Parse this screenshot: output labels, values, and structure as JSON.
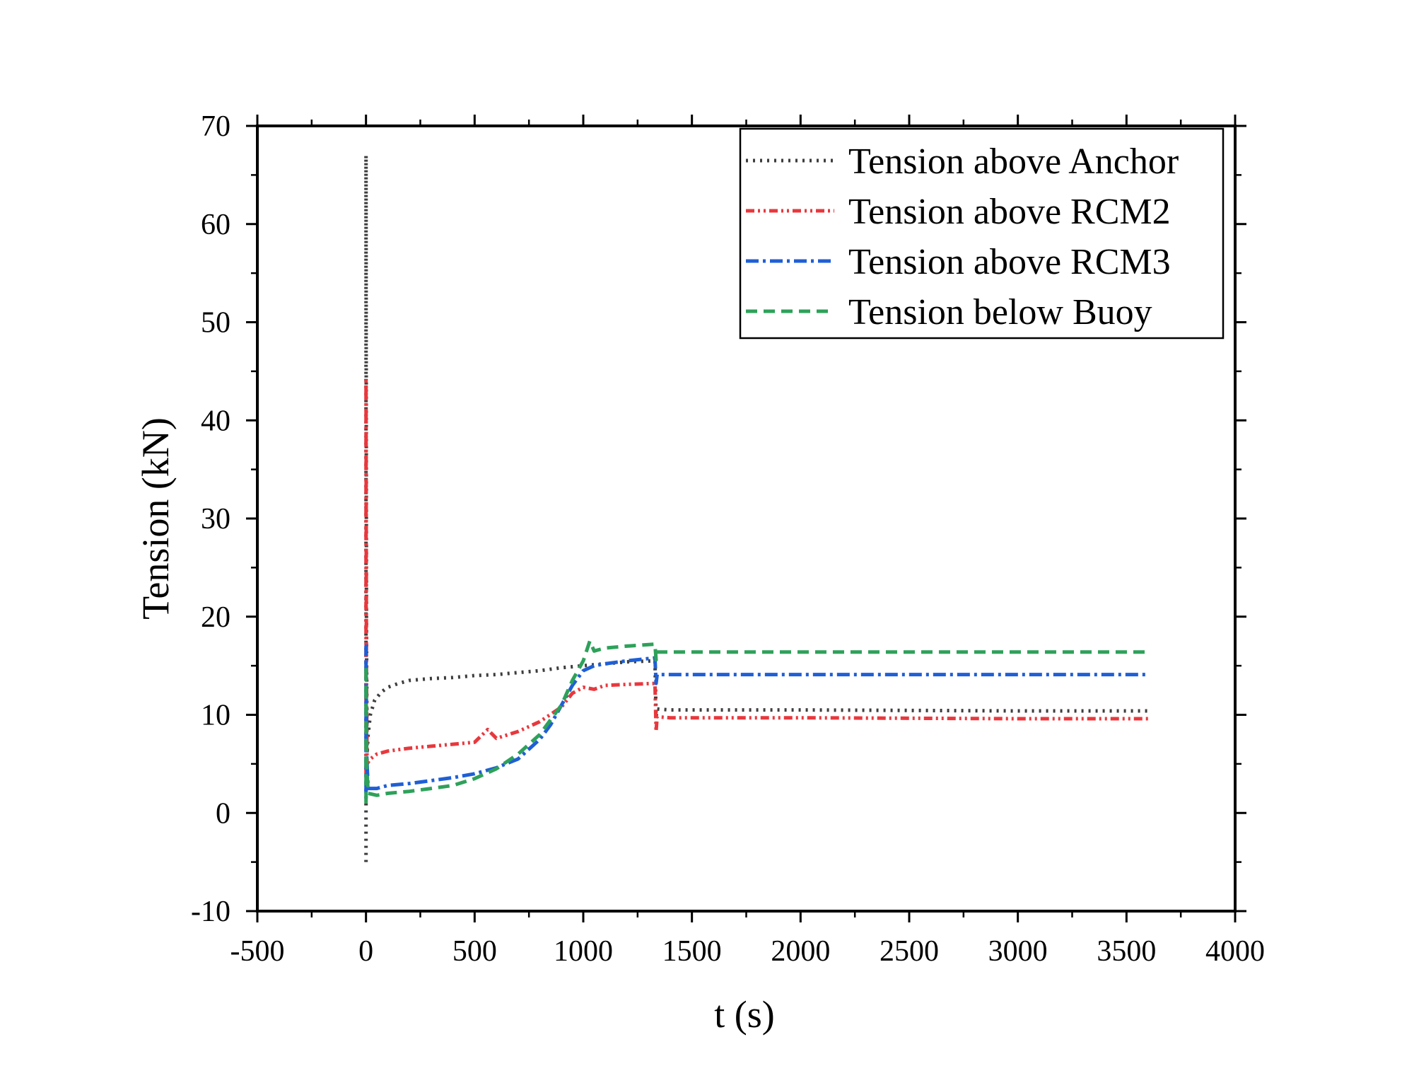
{
  "chart_data": {
    "type": "line",
    "title": "",
    "xlabel": "t (s)",
    "ylabel": "Tension (kN)",
    "xlim": [
      -500,
      4000
    ],
    "ylim": [
      -10,
      70
    ],
    "xticks": [
      -500,
      0,
      500,
      1000,
      1500,
      2000,
      2500,
      3000,
      3500,
      4000
    ],
    "yticks": [
      -10,
      0,
      10,
      20,
      30,
      40,
      50,
      60,
      70
    ],
    "xtick_labels": [
      "-500",
      "0",
      "500",
      "1000",
      "1500",
      "2000",
      "2500",
      "3000",
      "3500",
      "4000"
    ],
    "ytick_labels": [
      "-10",
      "0",
      "10",
      "20",
      "30",
      "40",
      "50",
      "60",
      "70"
    ],
    "grid": false,
    "legend_position": "top-right",
    "series": [
      {
        "name": "Tension above Anchor",
        "color": "#3d3d3d",
        "style": "dotted",
        "x": [
          0,
          0,
          2,
          5,
          10,
          20,
          40,
          70,
          100,
          150,
          200,
          300,
          400,
          500,
          600,
          700,
          800,
          900,
          1000,
          1100,
          1200,
          1330,
          1335,
          1340,
          1400,
          2000,
          3000,
          3600
        ],
        "y": [
          -5,
          67,
          20,
          6,
          8,
          10,
          11.5,
          12.3,
          12.8,
          13.2,
          13.5,
          13.7,
          13.8,
          14,
          14.1,
          14.3,
          14.5,
          14.8,
          15,
          15.2,
          15.4,
          15.5,
          9.8,
          10.6,
          10.5,
          10.5,
          10.4,
          10.4
        ]
      },
      {
        "name": "Tension above RCM2",
        "color": "#e8383d",
        "style": "dash-dot-dot",
        "x": [
          0,
          0,
          2,
          5,
          20,
          50,
          100,
          200,
          300,
          400,
          500,
          560,
          600,
          700,
          800,
          900,
          950,
          1000,
          1050,
          1100,
          1200,
          1330,
          1335,
          1340,
          1400,
          2000,
          3000,
          3600
        ],
        "y": [
          4,
          44,
          15,
          5,
          5.5,
          6,
          6.3,
          6.6,
          6.8,
          7,
          7.2,
          8.5,
          7.6,
          8.3,
          9.3,
          10.8,
          12.2,
          12.8,
          12.6,
          13,
          13.1,
          13.2,
          8.3,
          9.8,
          9.7,
          9.7,
          9.6,
          9.6
        ]
      },
      {
        "name": "Tension above RCM3",
        "color": "#1f5fd6",
        "style": "dash-dot",
        "x": [
          0,
          0,
          3,
          10,
          50,
          100,
          200,
          300,
          400,
          500,
          600,
          700,
          800,
          850,
          900,
          950,
          1000,
          1050,
          1100,
          1200,
          1330,
          1335,
          1340,
          1400,
          2000,
          3000,
          3600
        ],
        "y": [
          2,
          17,
          6,
          2.5,
          2.5,
          2.8,
          3,
          3.3,
          3.6,
          4,
          4.6,
          5.5,
          7.5,
          9,
          11,
          13,
          14.5,
          15,
          15.2,
          15.5,
          15.8,
          13.2,
          14.1,
          14.1,
          14.1,
          14.1,
          14.1
        ]
      },
      {
        "name": "Tension below Buoy",
        "color": "#2ea15a",
        "style": "dashed",
        "x": [
          0,
          0,
          3,
          10,
          50,
          100,
          200,
          300,
          400,
          500,
          600,
          700,
          800,
          850,
          900,
          950,
          1000,
          1030,
          1050,
          1100,
          1200,
          1330,
          1335,
          1340,
          1400,
          2000,
          3000,
          3600
        ],
        "y": [
          1,
          15,
          5,
          2,
          1.8,
          2,
          2.2,
          2.5,
          2.8,
          3.5,
          4.5,
          6,
          8,
          9.5,
          11,
          13.5,
          15.5,
          17.5,
          16.5,
          16.8,
          17,
          17.2,
          15.6,
          16.4,
          16.4,
          16.4,
          16.4,
          16.4
        ]
      }
    ]
  }
}
